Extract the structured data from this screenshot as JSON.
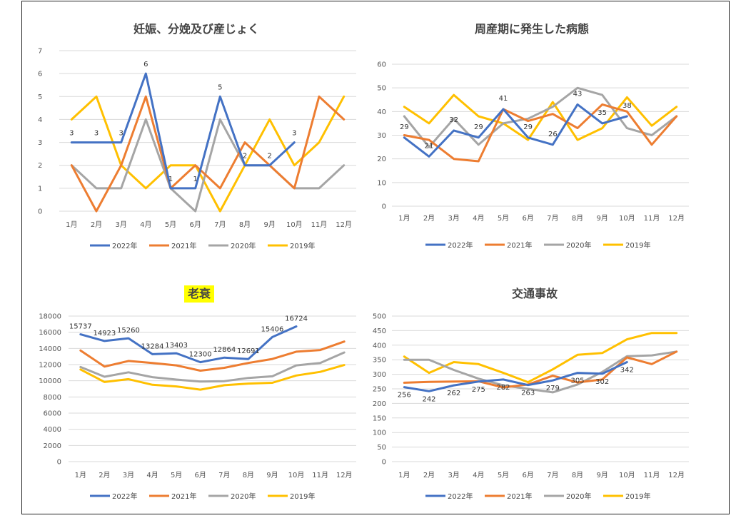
{
  "colors": {
    "2022年": "#4472C4",
    "2021年": "#ED7D31",
    "2020年": "#A5A5A5",
    "2019年": "#FFC000",
    "highlight": "#FFFF00"
  },
  "chart_data": [
    {
      "type": "line",
      "title": "妊娠、分娩及び産じょく",
      "categories": [
        "1月",
        "2月",
        "3月",
        "4月",
        "5月",
        "6月",
        "7月",
        "8月",
        "9月",
        "10月",
        "11月",
        "12月"
      ],
      "ylim": [
        0,
        7
      ],
      "yticks": [
        0,
        1,
        2,
        3,
        4,
        5,
        6,
        7
      ],
      "grid": true,
      "legend": "bottom",
      "series": [
        {
          "name": "2022年",
          "values": [
            3,
            3,
            3,
            6,
            1,
            1,
            5,
            2,
            2,
            3,
            null,
            null
          ],
          "labels": [
            3,
            3,
            3,
            6,
            1,
            1,
            5,
            2,
            2,
            3,
            null,
            null
          ]
        },
        {
          "name": "2021年",
          "values": [
            2,
            0,
            2,
            5,
            1,
            2,
            1,
            3,
            2,
            1,
            5,
            4
          ]
        },
        {
          "name": "2020年",
          "values": [
            2,
            1,
            1,
            4,
            1,
            0,
            4,
            2,
            2,
            1,
            1,
            2
          ]
        },
        {
          "name": "2019年",
          "values": [
            4,
            5,
            2,
            1,
            2,
            2,
            0,
            2,
            4,
            2,
            3,
            5
          ]
        }
      ]
    },
    {
      "type": "line",
      "title": "周産期に発生した病態",
      "categories": [
        "1月",
        "2月",
        "3月",
        "4月",
        "5月",
        "6月",
        "7月",
        "8月",
        "9月",
        "10月",
        "11月",
        "12月"
      ],
      "ylim": [
        0,
        60
      ],
      "yticks": [
        0,
        10,
        20,
        30,
        40,
        50,
        60
      ],
      "grid": true,
      "legend": "bottom",
      "series": [
        {
          "name": "2022年",
          "values": [
            29,
            21,
            32,
            29,
            41,
            29,
            26,
            43,
            35,
            38,
            null,
            null
          ],
          "labels": [
            29,
            21,
            32,
            29,
            41,
            29,
            26,
            43,
            35,
            38,
            null,
            null
          ]
        },
        {
          "name": "2021年",
          "values": [
            30,
            28,
            20,
            19,
            41,
            36,
            39,
            33,
            43,
            40,
            26,
            38
          ]
        },
        {
          "name": "2020年",
          "values": [
            38,
            25,
            37,
            26,
            35,
            37,
            42,
            50,
            47,
            33,
            30,
            38
          ]
        },
        {
          "name": "2019年",
          "values": [
            42,
            35,
            47,
            38,
            35,
            28,
            44,
            28,
            33,
            46,
            34,
            42
          ]
        }
      ]
    },
    {
      "type": "line",
      "title": "老衰",
      "title_highlight": true,
      "categories": [
        "1月",
        "2月",
        "3月",
        "4月",
        "5月",
        "6月",
        "7月",
        "8月",
        "9月",
        "10月",
        "11月",
        "12月"
      ],
      "ylim": [
        0,
        18000
      ],
      "yticks": [
        0,
        2000,
        4000,
        6000,
        8000,
        10000,
        12000,
        14000,
        16000,
        18000
      ],
      "grid": true,
      "legend": "bottom",
      "series": [
        {
          "name": "2022年",
          "values": [
            15737,
            14923,
            15260,
            13284,
            13403,
            12300,
            12864,
            12691,
            15406,
            16724,
            null,
            null
          ],
          "labels": [
            15737,
            14923,
            15260,
            13284,
            13403,
            12300,
            12864,
            12691,
            15406,
            16724,
            null,
            null
          ]
        },
        {
          "name": "2021年",
          "values": [
            13750,
            11750,
            12450,
            12200,
            11900,
            11250,
            11600,
            12200,
            12700,
            13600,
            13800,
            14850
          ]
        },
        {
          "name": "2020年",
          "values": [
            11700,
            10500,
            11050,
            10450,
            10150,
            9900,
            9950,
            10350,
            10550,
            11900,
            12200,
            13500
          ]
        },
        {
          "name": "2019年",
          "values": [
            11400,
            9850,
            10200,
            9500,
            9300,
            8900,
            9450,
            9650,
            9750,
            10650,
            11100,
            11950
          ]
        }
      ]
    },
    {
      "type": "line",
      "title": "交通事故",
      "categories": [
        "1月",
        "2月",
        "3月",
        "4月",
        "5月",
        "6月",
        "7月",
        "8月",
        "9月",
        "10月",
        "11月",
        "12月"
      ],
      "ylim": [
        0,
        500
      ],
      "yticks": [
        0,
        50,
        100,
        150,
        200,
        250,
        300,
        350,
        400,
        450,
        500
      ],
      "grid": true,
      "legend": "bottom",
      "series": [
        {
          "name": "2022年",
          "values": [
            256,
            242,
            262,
            275,
            282,
            263,
            279,
            305,
            302,
            342,
            null,
            null
          ],
          "labels": [
            256,
            242,
            262,
            275,
            282,
            263,
            279,
            305,
            302,
            342,
            null,
            null
          ]
        },
        {
          "name": "2021年",
          "values": [
            271,
            274,
            275,
            276,
            255,
            265,
            295,
            272,
            282,
            358,
            335,
            378
          ]
        },
        {
          "name": "2020年",
          "values": [
            350,
            350,
            315,
            285,
            262,
            250,
            238,
            265,
            308,
            362,
            365,
            378
          ]
        },
        {
          "name": "2019年",
          "values": [
            361,
            305,
            342,
            335,
            305,
            273,
            317,
            367,
            373,
            420,
            442,
            442
          ]
        }
      ]
    }
  ]
}
